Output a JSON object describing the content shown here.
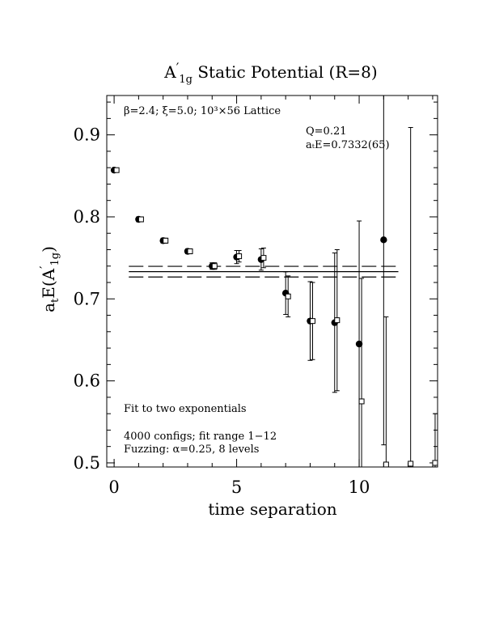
{
  "chart_data": {
    "type": "scatter",
    "title_main": "A",
    "title_prime": "′",
    "title_sub": "1g",
    "title_rest": " Static Potential (R=8)",
    "ylabel_main": "a",
    "ylabel_sub1": "t",
    "ylabel_mid": "E(A",
    "ylabel_prime": "′",
    "ylabel_sub2": "1g",
    "ylabel_end": ")",
    "xlabel": "time separation",
    "xlim": [
      -0.3,
      13.2
    ],
    "ylim": [
      0.495,
      0.948
    ],
    "x_ticks": [
      0,
      5,
      10
    ],
    "x_tick_labels": [
      "0",
      "5",
      "10"
    ],
    "y_ticks": [
      0.5,
      0.6,
      0.7,
      0.8,
      0.9
    ],
    "y_tick_labels": [
      "0.5",
      "0.6",
      "0.7",
      "0.8",
      "0.9"
    ],
    "annotations": {
      "lattice": "β=2.4; ξ=5.0; 10³×56 Lattice",
      "q": "Q=0.21",
      "energy": "aₜE=0.7332(65)",
      "fit": "Fit to two exponentials",
      "configs": "4000 configs; fit range 1−12",
      "fuzzing": "Fuzzing: α=0.25, 8 levels"
    },
    "fit": {
      "central": 0.7332,
      "error": 0.0065,
      "x_range": [
        0.6,
        11.6
      ]
    },
    "series": [
      {
        "marker": "filled-circle",
        "x": [
          0,
          1,
          2,
          3,
          4,
          5,
          6,
          7,
          8,
          9,
          10,
          11
        ],
        "y": [
          0.857,
          0.797,
          0.771,
          0.758,
          0.74,
          0.751,
          0.748,
          0.707,
          0.673,
          0.671,
          0.645,
          0.772
        ],
        "err": [
          0.002,
          0.003,
          0.003,
          0.003,
          0.004,
          0.008,
          0.013,
          0.026,
          0.048,
          0.085,
          0.15,
          0.25
        ]
      },
      {
        "marker": "open-square",
        "x": [
          0.1,
          1.1,
          2.1,
          3.1,
          4.1,
          5.1,
          6.1,
          7.1,
          8.1,
          9.1,
          10.1,
          11.1,
          12.1,
          13.1
        ],
        "y": [
          0.857,
          0.797,
          0.771,
          0.758,
          0.74,
          0.752,
          0.75,
          0.703,
          0.673,
          0.674,
          0.575,
          0.498,
          0.499,
          0.5
        ],
        "err": [
          0.002,
          0.003,
          0.003,
          0.003,
          0.004,
          0.007,
          0.012,
          0.025,
          0.047,
          0.086,
          0.15,
          0.18,
          0.41,
          0.06
        ]
      }
    ]
  }
}
